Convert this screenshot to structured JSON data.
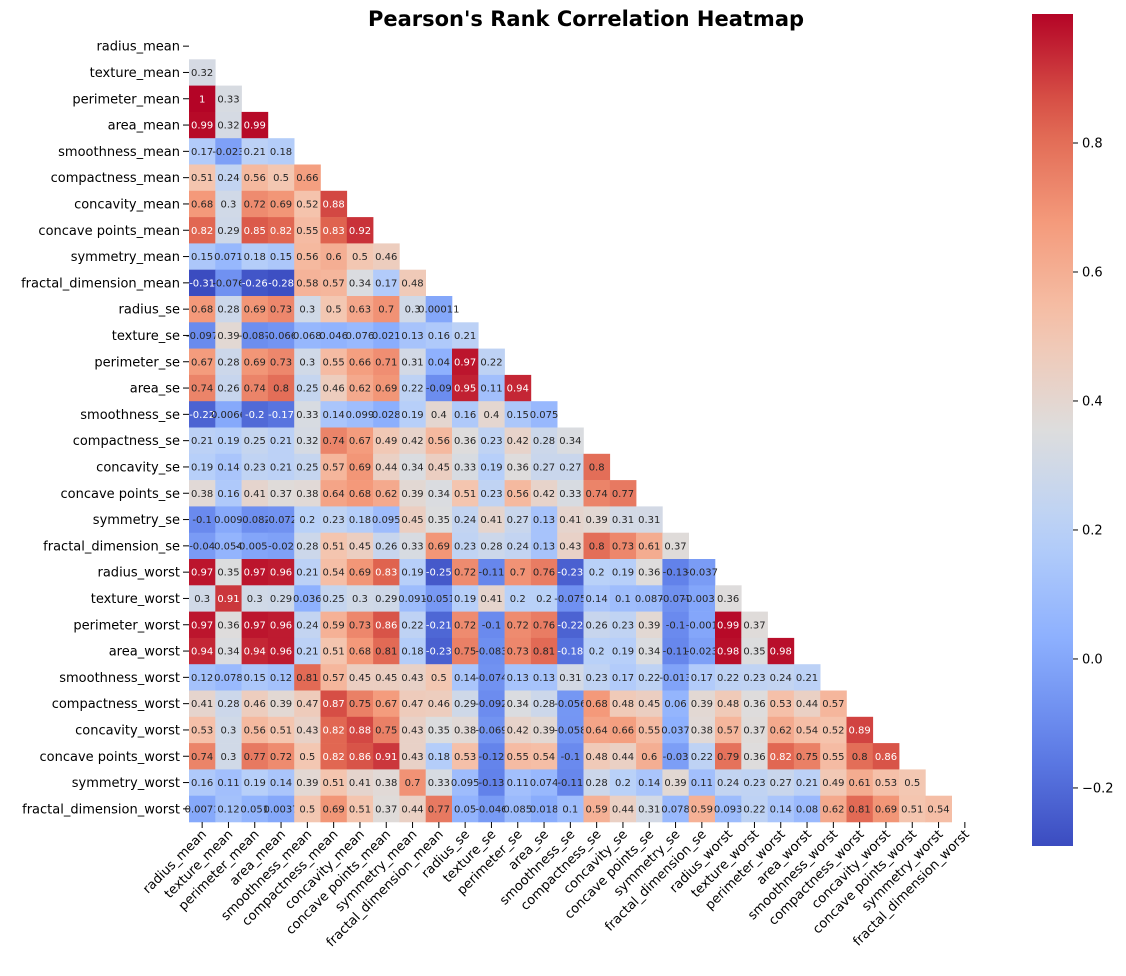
{
  "chart_data": {
    "type": "heatmap",
    "title": "Pearson's Rank Correlation Heatmap",
    "mask": "upper triangle including diagonal",
    "colormap": "coolwarm",
    "color_range": [
      -0.29,
      1.0
    ],
    "labels": [
      "radius_mean",
      "texture_mean",
      "perimeter_mean",
      "area_mean",
      "smoothness_mean",
      "compactness_mean",
      "concavity_mean",
      "concave points_mean",
      "symmetry_mean",
      "fractal_dimension_mean",
      "radius_se",
      "texture_se",
      "perimeter_se",
      "area_se",
      "smoothness_se",
      "compactness_se",
      "concavity_se",
      "concave points_se",
      "symmetry_se",
      "fractal_dimension_se",
      "radius_worst",
      "texture_worst",
      "perimeter_worst",
      "area_worst",
      "smoothness_worst",
      "compactness_worst",
      "concavity_worst",
      "concave points_worst",
      "symmetry_worst",
      "fractal_dimension_worst"
    ],
    "values": [
      [],
      [
        0.32
      ],
      [
        1,
        0.33
      ],
      [
        0.99,
        0.32,
        0.99
      ],
      [
        0.17,
        -0.023,
        0.21,
        0.18
      ],
      [
        0.51,
        0.24,
        0.56,
        0.5,
        0.66
      ],
      [
        0.68,
        0.3,
        0.72,
        0.69,
        0.52,
        0.88
      ],
      [
        0.82,
        0.29,
        0.85,
        0.82,
        0.55,
        0.83,
        0.92
      ],
      [
        0.15,
        0.071,
        0.18,
        0.15,
        0.56,
        0.6,
        0.5,
        0.46
      ],
      [
        -0.31,
        -0.076,
        -0.26,
        -0.28,
        0.58,
        0.57,
        0.34,
        0.17,
        0.48
      ],
      [
        0.68,
        0.28,
        0.69,
        0.73,
        0.3,
        0.5,
        0.63,
        0.7,
        0.3,
        0.00011
      ],
      [
        -0.097,
        0.39,
        -0.087,
        -0.066,
        0.068,
        0.046,
        0.076,
        0.021,
        0.13,
        0.16,
        0.21
      ],
      [
        0.67,
        0.28,
        0.69,
        0.73,
        0.3,
        0.55,
        0.66,
        0.71,
        0.31,
        0.04,
        0.97,
        0.22
      ],
      [
        0.74,
        0.26,
        0.74,
        0.8,
        0.25,
        0.46,
        0.62,
        0.69,
        0.22,
        -0.09,
        0.95,
        0.11,
        0.94
      ],
      [
        -0.22,
        0.0066,
        -0.2,
        -0.17,
        0.33,
        0.14,
        0.099,
        0.028,
        0.19,
        0.4,
        0.16,
        0.4,
        0.15,
        0.075
      ],
      [
        0.21,
        0.19,
        0.25,
        0.21,
        0.32,
        0.74,
        0.67,
        0.49,
        0.42,
        0.56,
        0.36,
        0.23,
        0.42,
        0.28,
        0.34
      ],
      [
        0.19,
        0.14,
        0.23,
        0.21,
        0.25,
        0.57,
        0.69,
        0.44,
        0.34,
        0.45,
        0.33,
        0.19,
        0.36,
        0.27,
        0.27,
        0.8
      ],
      [
        0.38,
        0.16,
        0.41,
        0.37,
        0.38,
        0.64,
        0.68,
        0.62,
        0.39,
        0.34,
        0.51,
        0.23,
        0.56,
        0.42,
        0.33,
        0.74,
        0.77
      ],
      [
        -0.1,
        0.009,
        -0.082,
        -0.072,
        0.2,
        0.23,
        0.18,
        0.095,
        0.45,
        0.35,
        0.24,
        0.41,
        0.27,
        0.13,
        0.41,
        0.39,
        0.31,
        0.31
      ],
      [
        -0.04,
        0.054,
        -0.0055,
        -0.02,
        0.28,
        0.51,
        0.45,
        0.26,
        0.33,
        0.69,
        0.23,
        0.28,
        0.24,
        0.13,
        0.43,
        0.8,
        0.73,
        0.61,
        0.37
      ],
      [
        0.97,
        0.35,
        0.97,
        0.96,
        0.21,
        0.54,
        0.69,
        0.83,
        0.19,
        -0.25,
        0.72,
        -0.11,
        0.7,
        0.76,
        -0.23,
        0.2,
        0.19,
        0.36,
        -0.13,
        -0.037
      ],
      [
        0.3,
        0.91,
        0.3,
        0.29,
        0.036,
        0.25,
        0.3,
        0.29,
        0.091,
        -0.051,
        0.19,
        0.41,
        0.2,
        0.2,
        -0.075,
        0.14,
        0.1,
        0.087,
        -0.077,
        -0.0032,
        0.36
      ],
      [
        0.97,
        0.36,
        0.97,
        0.96,
        0.24,
        0.59,
        0.73,
        0.86,
        0.22,
        -0.21,
        0.72,
        -0.1,
        0.72,
        0.76,
        -0.22,
        0.26,
        0.23,
        0.39,
        -0.1,
        -0.001,
        0.99,
        0.37
      ],
      [
        0.94,
        0.34,
        0.94,
        0.96,
        0.21,
        0.51,
        0.68,
        0.81,
        0.18,
        -0.23,
        0.75,
        -0.083,
        0.73,
        0.81,
        -0.18,
        0.2,
        0.19,
        0.34,
        -0.11,
        -0.023,
        0.98,
        0.35,
        0.98
      ],
      [
        0.12,
        0.078,
        0.15,
        0.12,
        0.81,
        0.57,
        0.45,
        0.45,
        0.43,
        0.5,
        0.14,
        -0.074,
        0.13,
        0.13,
        0.31,
        0.23,
        0.17,
        0.22,
        -0.013,
        0.17,
        0.22,
        0.23,
        0.24,
        0.21
      ],
      [
        0.41,
        0.28,
        0.46,
        0.39,
        0.47,
        0.87,
        0.75,
        0.67,
        0.47,
        0.46,
        0.29,
        -0.092,
        0.34,
        0.28,
        -0.056,
        0.68,
        0.48,
        0.45,
        0.06,
        0.39,
        0.48,
        0.36,
        0.53,
        0.44,
        0.57
      ],
      [
        0.53,
        0.3,
        0.56,
        0.51,
        0.43,
        0.82,
        0.88,
        0.75,
        0.43,
        0.35,
        0.38,
        -0.069,
        0.42,
        0.39,
        -0.058,
        0.64,
        0.66,
        0.55,
        0.037,
        0.38,
        0.57,
        0.37,
        0.62,
        0.54,
        0.52,
        0.89
      ],
      [
        0.74,
        0.3,
        0.77,
        0.72,
        0.5,
        0.82,
        0.86,
        0.91,
        0.43,
        0.18,
        0.53,
        -0.12,
        0.55,
        0.54,
        -0.1,
        0.48,
        0.44,
        0.6,
        -0.03,
        0.22,
        0.79,
        0.36,
        0.82,
        0.75,
        0.55,
        0.8,
        0.86
      ],
      [
        0.16,
        0.11,
        0.19,
        0.14,
        0.39,
        0.51,
        0.41,
        0.38,
        0.7,
        0.33,
        0.095,
        -0.13,
        0.11,
        0.074,
        -0.11,
        0.28,
        0.2,
        0.14,
        0.39,
        0.11,
        0.24,
        0.23,
        0.27,
        0.21,
        0.49,
        0.61,
        0.53,
        0.5
      ],
      [
        0.0071,
        0.12,
        0.051,
        0.0037,
        0.5,
        0.69,
        0.51,
        0.37,
        0.44,
        0.77,
        0.05,
        -0.046,
        0.085,
        0.018,
        0.1,
        0.59,
        0.44,
        0.31,
        0.078,
        0.59,
        0.093,
        0.22,
        0.14,
        0.08,
        0.62,
        0.81,
        0.69,
        0.51,
        0.54
      ]
    ],
    "colorbar_ticks": [
      0.8,
      0.6,
      0.4,
      0.2,
      0.0,
      -0.2
    ],
    "colorbar_tick_labels": [
      "0.8",
      "0.6",
      "0.4",
      "0.2",
      "0.0",
      "−0.2"
    ]
  }
}
